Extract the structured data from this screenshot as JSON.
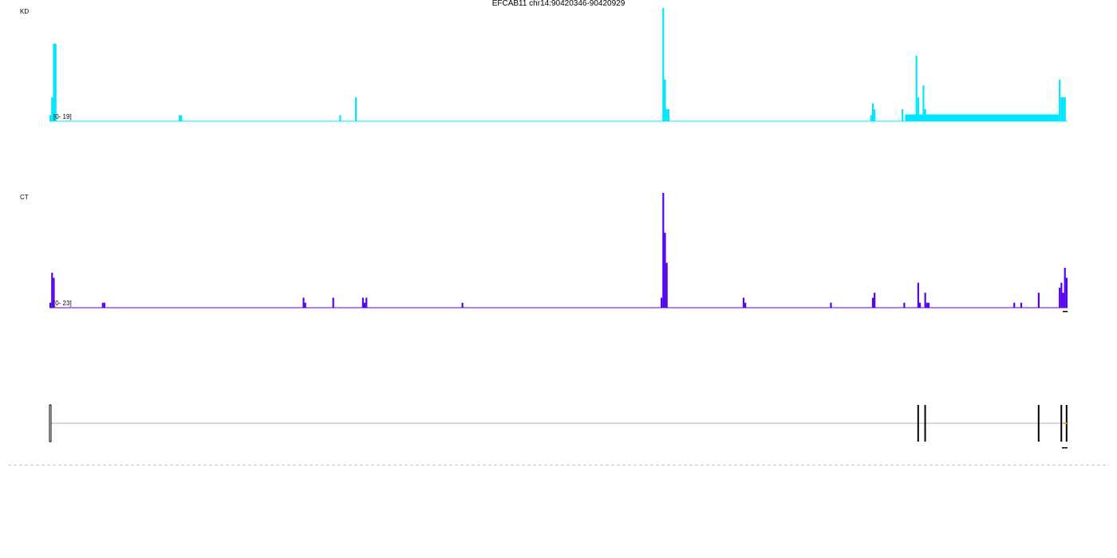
{
  "title": "EFCAB11 chr14:90420346-90420929",
  "colors": {
    "kd": "#00e5ff",
    "ct": "#5500ee",
    "gene": "#000000",
    "intron": "#b0b0b0",
    "divider": "#c8c8c8"
  },
  "chart_data": [
    {
      "type": "bar",
      "track": "KD",
      "range_label": "[0- 19]",
      "ylim": [
        0,
        19
      ],
      "xlim": [
        90420346,
        90420929
      ],
      "color": "#00e5ff",
      "baseline": "on",
      "coverage_block": {
        "start": 90420836,
        "end": 90420924,
        "value": 1
      },
      "bars": [
        [
          90420346,
          1
        ],
        [
          90420347,
          4
        ],
        [
          90420348,
          13
        ],
        [
          90420349,
          13
        ],
        [
          90420420,
          1
        ],
        [
          90420421,
          1
        ],
        [
          90420512,
          1
        ],
        [
          90420521,
          4
        ],
        [
          90420697,
          19
        ],
        [
          90420698,
          7
        ],
        [
          90420699,
          2
        ],
        [
          90420700,
          2
        ],
        [
          90420816,
          1
        ],
        [
          90420817,
          3
        ],
        [
          90420818,
          2
        ],
        [
          90420834,
          2
        ],
        [
          90420838,
          1
        ],
        [
          90420842,
          11
        ],
        [
          90420843,
          4
        ],
        [
          90420846,
          6
        ],
        [
          90420847,
          2
        ],
        [
          90420924,
          7
        ],
        [
          90420925,
          4
        ],
        [
          90420926,
          4
        ],
        [
          90420927,
          4
        ]
      ]
    },
    {
      "type": "bar",
      "track": "CT",
      "range_label": "[0- 23]",
      "ylim": [
        0,
        23
      ],
      "xlim": [
        90420346,
        90420929
      ],
      "color": "#5500ee",
      "baseline": "on",
      "bars": [
        [
          90420346,
          1
        ],
        [
          90420347,
          7
        ],
        [
          90420348,
          6
        ],
        [
          90420376,
          1
        ],
        [
          90420377,
          1
        ],
        [
          90420491,
          2
        ],
        [
          90420492,
          1
        ],
        [
          90420508,
          2
        ],
        [
          90420525,
          2
        ],
        [
          90420526,
          1
        ],
        [
          90420527,
          2
        ],
        [
          90420582,
          1
        ],
        [
          90420696,
          2
        ],
        [
          90420697,
          23
        ],
        [
          90420698,
          15
        ],
        [
          90420699,
          9
        ],
        [
          90420743,
          2
        ],
        [
          90420744,
          1
        ],
        [
          90420793,
          1
        ],
        [
          90420817,
          2
        ],
        [
          90420818,
          3
        ],
        [
          90420835,
          1
        ],
        [
          90420843,
          5
        ],
        [
          90420844,
          1
        ],
        [
          90420847,
          3
        ],
        [
          90420848,
          1
        ],
        [
          90420849,
          1
        ],
        [
          90420898,
          1
        ],
        [
          90420902,
          1
        ],
        [
          90420912,
          3
        ],
        [
          90420924,
          4
        ],
        [
          90420925,
          5
        ],
        [
          90420926,
          3
        ],
        [
          90420927,
          8
        ],
        [
          90420928,
          6
        ]
      ]
    },
    {
      "type": "gene_model",
      "gene": "EFCAB11",
      "xlim": [
        90420346,
        90420929
      ],
      "intron": [
        90420346,
        90420928
      ],
      "exons": [
        [
          90420346,
          90420347
        ],
        [
          90420843,
          90420843
        ],
        [
          90420847,
          90420847
        ],
        [
          90420912,
          90420912
        ],
        [
          90420925,
          90420925
        ],
        [
          90420928,
          90420928
        ]
      ]
    }
  ]
}
